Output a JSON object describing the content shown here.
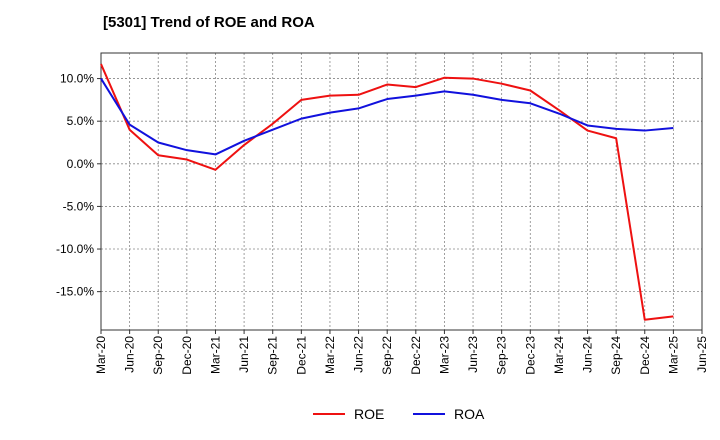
{
  "chart_data": {
    "type": "line",
    "title": "[5301]  Trend of ROE and ROA",
    "xlabel": "",
    "ylabel": "",
    "x_ticks": [
      "Mar-20",
      "Jun-20",
      "Sep-20",
      "Dec-20",
      "Mar-21",
      "Jun-21",
      "Sep-21",
      "Dec-21",
      "Mar-22",
      "Jun-22",
      "Sep-22",
      "Dec-22",
      "Mar-23",
      "Jun-23",
      "Sep-23",
      "Dec-23",
      "Mar-24",
      "Jun-24",
      "Sep-24",
      "Dec-24",
      "Mar-25",
      "Jun-25"
    ],
    "y_ticks": [
      {
        "value": 10,
        "label": "10.0%"
      },
      {
        "value": 5,
        "label": "5.0%"
      },
      {
        "value": 0,
        "label": "0.0%"
      },
      {
        "value": -5,
        "label": "-5.0%"
      },
      {
        "value": -10,
        "label": "-10.0%"
      },
      {
        "value": -15,
        "label": "-15.0%"
      }
    ],
    "ylim": [
      -19.5,
      13
    ],
    "grid": true,
    "legend_position": "bottom-center",
    "series": [
      {
        "name": "ROE",
        "color": "#ee1111",
        "x": [
          "Mar-20",
          "Jun-20",
          "Sep-20",
          "Dec-20",
          "Mar-21",
          "Jun-21",
          "Sep-21",
          "Dec-21",
          "Mar-22",
          "Jun-22",
          "Sep-22",
          "Dec-22",
          "Mar-23",
          "Jun-23",
          "Sep-23",
          "Dec-23",
          "Mar-24",
          "Jun-24",
          "Sep-24",
          "Dec-24",
          "Mar-25"
        ],
        "values": [
          11.7,
          4.0,
          1.0,
          0.5,
          -0.7,
          2.2,
          4.7,
          7.5,
          8.0,
          8.1,
          9.3,
          9.0,
          10.1,
          10.0,
          9.4,
          8.6,
          6.3,
          3.9,
          3.0,
          -18.3,
          -17.9
        ]
      },
      {
        "name": "ROA",
        "color": "#1111dd",
        "x": [
          "Mar-20",
          "Jun-20",
          "Sep-20",
          "Dec-20",
          "Mar-21",
          "Jun-21",
          "Sep-21",
          "Dec-21",
          "Mar-22",
          "Jun-22",
          "Sep-22",
          "Dec-22",
          "Mar-23",
          "Jun-23",
          "Sep-23",
          "Dec-23",
          "Mar-24",
          "Jun-24",
          "Sep-24",
          "Dec-24",
          "Mar-25"
        ],
        "values": [
          10.0,
          4.6,
          2.5,
          1.6,
          1.1,
          2.7,
          4.0,
          5.3,
          6.0,
          6.5,
          7.6,
          8.0,
          8.5,
          8.1,
          7.5,
          7.1,
          5.9,
          4.5,
          4.1,
          3.9,
          4.2
        ]
      }
    ]
  }
}
